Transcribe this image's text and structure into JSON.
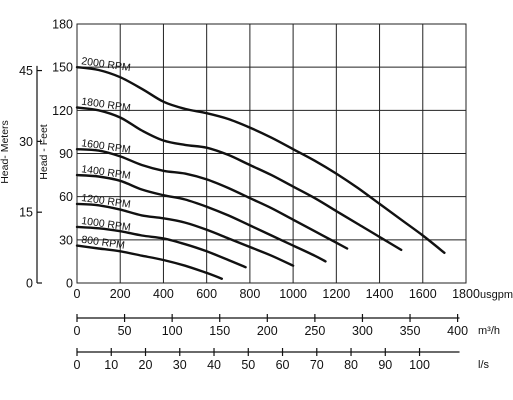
{
  "chart_data": {
    "type": "line",
    "xlabel": "usgpm",
    "ylabel": "Head - Feet",
    "xlim": [
      0,
      1800
    ],
    "ylim": [
      0,
      180
    ],
    "x_ticks": [
      0,
      200,
      400,
      600,
      800,
      1000,
      1200,
      1400,
      1600,
      1800
    ],
    "y_ticks": [
      0,
      30,
      60,
      90,
      120,
      150,
      180
    ],
    "grid": true,
    "secondary_y_axis": {
      "label": "Head- Meters",
      "ticks": [
        {
          "value": 0,
          "label": "0"
        },
        {
          "value": 15,
          "label": "15"
        },
        {
          "value": 30,
          "label": "30"
        },
        {
          "value": 45,
          "label": "45"
        }
      ]
    },
    "secondary_x_axes": [
      {
        "unit": "m³/h",
        "ticks": [
          0,
          50,
          100,
          150,
          200,
          250,
          300,
          350,
          400
        ]
      },
      {
        "unit": "l/s",
        "ticks": [
          0,
          10,
          20,
          30,
          40,
          50,
          60,
          70,
          80,
          90,
          100
        ]
      }
    ],
    "series": [
      {
        "name": "2000 RPM",
        "x": [
          0,
          100,
          200,
          300,
          400,
          500,
          600,
          700,
          800,
          900,
          1000,
          1100,
          1200,
          1300,
          1400,
          1500,
          1600,
          1700
        ],
        "y": [
          150,
          148,
          143,
          135,
          126,
          121,
          118,
          114,
          108,
          101,
          93,
          85,
          76,
          66,
          55,
          44,
          33,
          21
        ]
      },
      {
        "name": "1800 RPM",
        "x": [
          0,
          100,
          200,
          300,
          400,
          500,
          600,
          700,
          800,
          900,
          1000,
          1100,
          1200,
          1300,
          1400,
          1500
        ],
        "y": [
          122,
          120,
          115,
          106,
          99,
          96,
          94,
          89,
          82,
          75,
          67,
          59,
          50,
          41,
          32,
          23
        ]
      },
      {
        "name": "1600 RPM",
        "x": [
          0,
          100,
          200,
          300,
          400,
          500,
          600,
          700,
          800,
          900,
          1000,
          1100,
          1200,
          1250
        ],
        "y": [
          93,
          92,
          88,
          82,
          78,
          76,
          72,
          66,
          59,
          52,
          44,
          36,
          28,
          24
        ]
      },
      {
        "name": "1400 RPM",
        "x": [
          0,
          100,
          200,
          300,
          400,
          500,
          600,
          700,
          800,
          900,
          1000,
          1100,
          1150
        ],
        "y": [
          75,
          74,
          71,
          65,
          61,
          58,
          53,
          47,
          40,
          33,
          26,
          19,
          15
        ]
      },
      {
        "name": "1200 RPM",
        "x": [
          0,
          100,
          200,
          300,
          400,
          500,
          600,
          700,
          800,
          900,
          1000
        ],
        "y": [
          55,
          54,
          51,
          47,
          45,
          42,
          37,
          31,
          25,
          19,
          12
        ]
      },
      {
        "name": "1000 RPM",
        "x": [
          0,
          100,
          200,
          300,
          400,
          500,
          600,
          700,
          780
        ],
        "y": [
          39,
          38,
          36,
          33,
          31,
          27,
          22,
          16,
          11
        ]
      },
      {
        "name": "800 RPM",
        "x": [
          0,
          100,
          200,
          300,
          400,
          500,
          600,
          670
        ],
        "y": [
          26,
          24,
          22,
          19,
          16,
          12,
          7,
          3
        ]
      }
    ]
  }
}
